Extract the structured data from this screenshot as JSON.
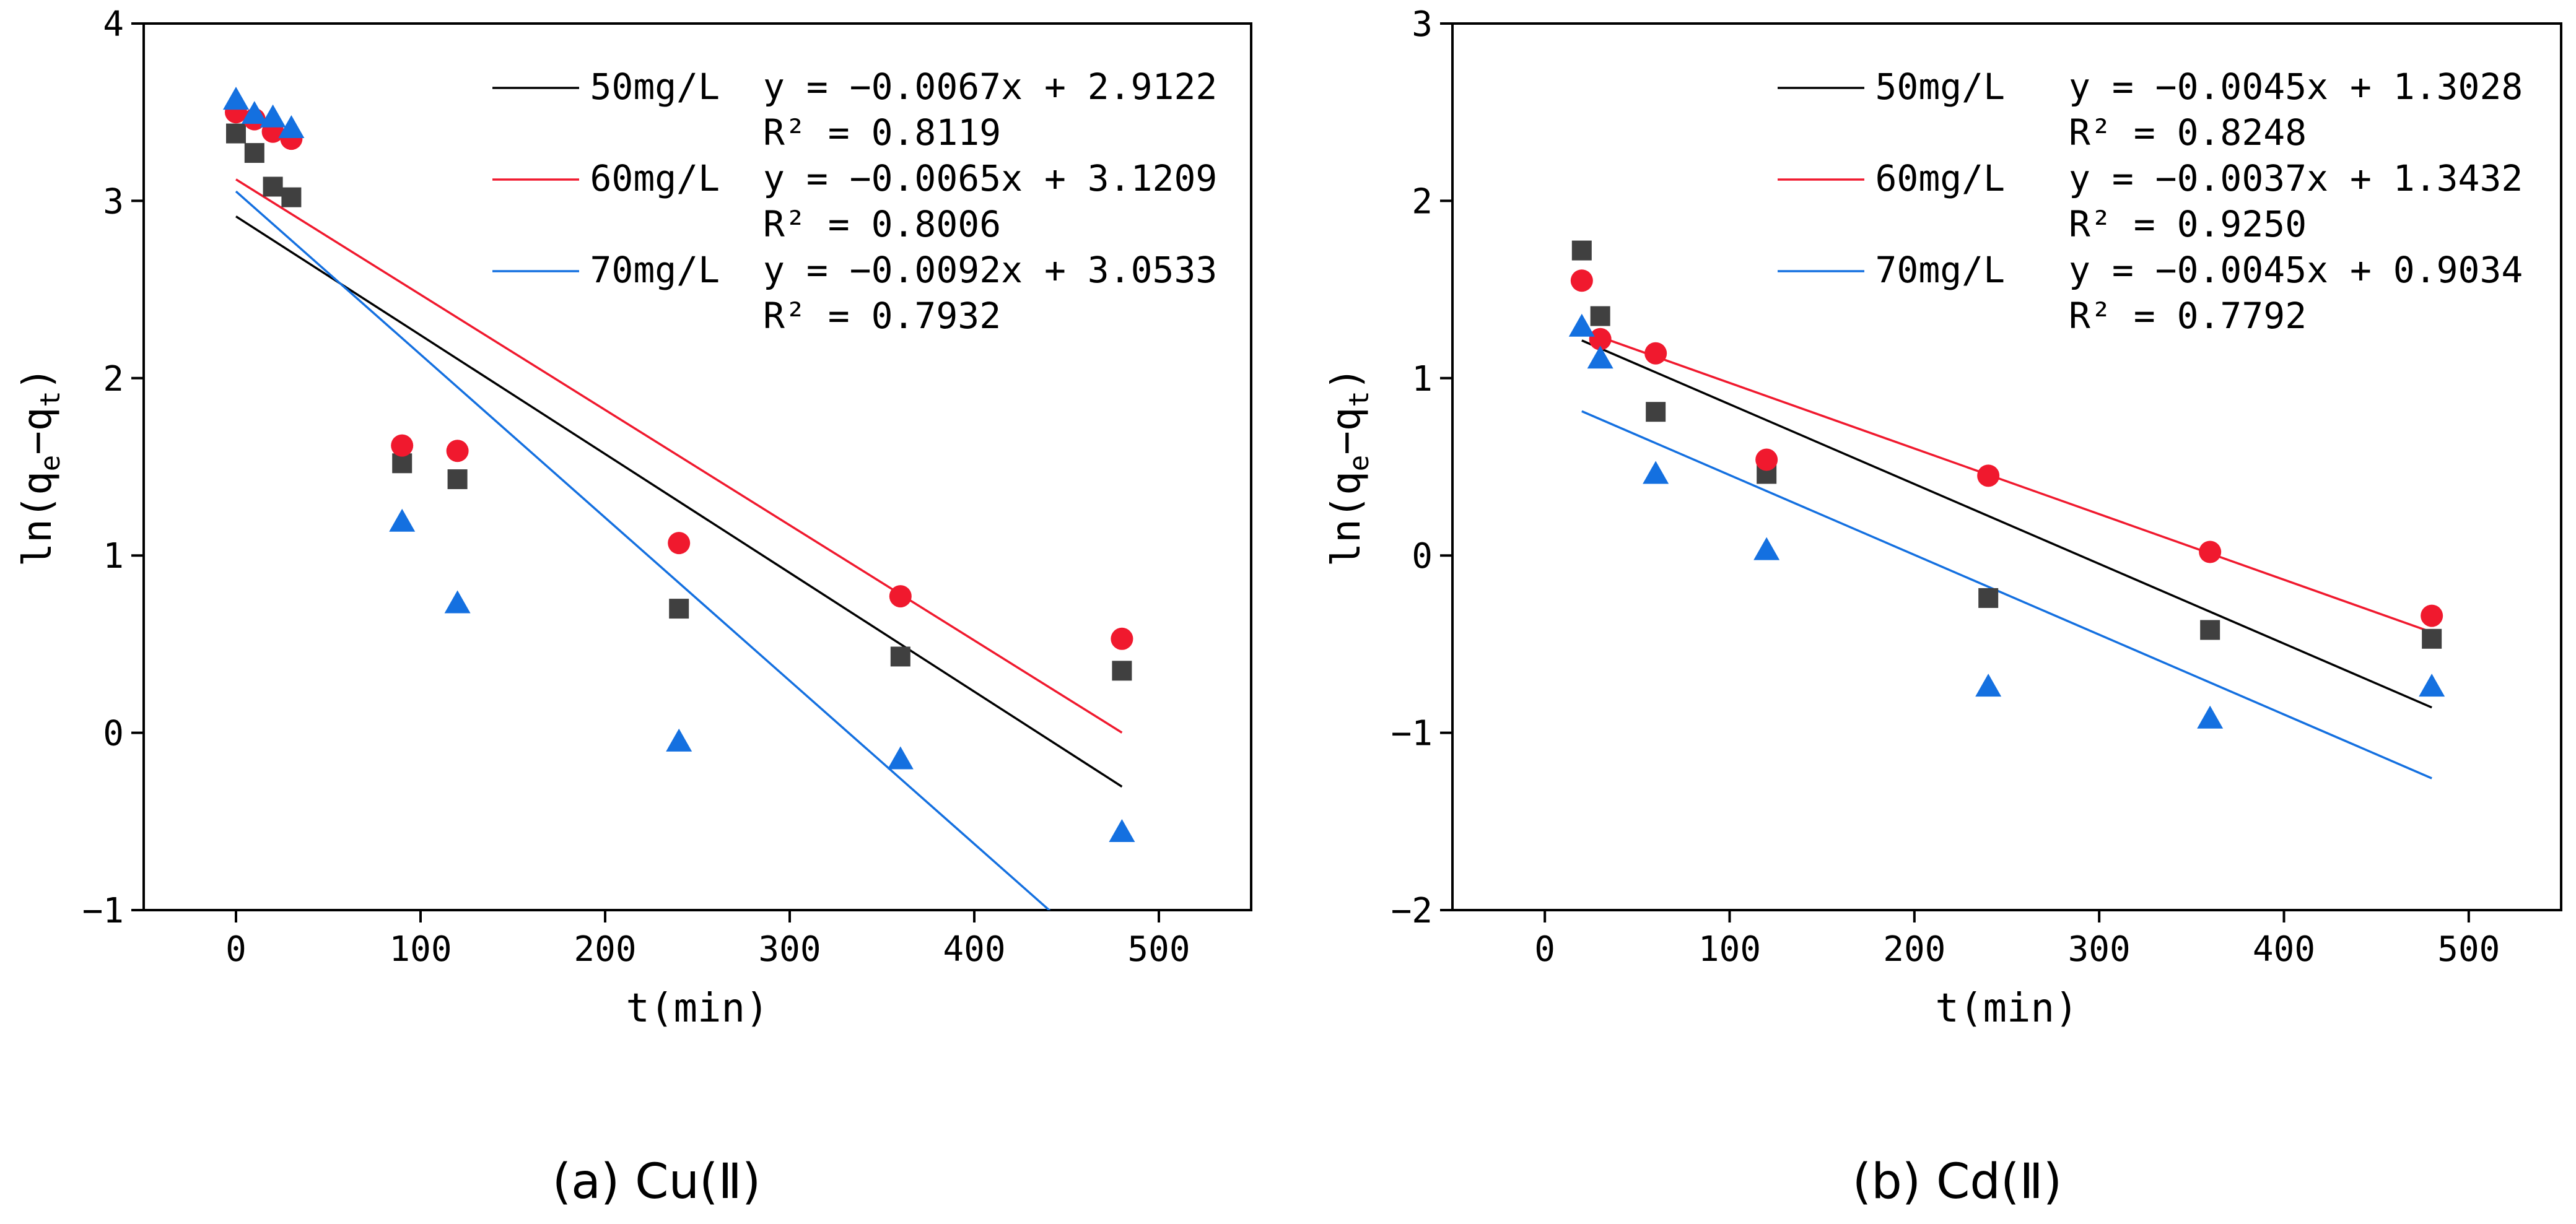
{
  "chart_data": [
    {
      "type": "scatter",
      "panel": "a",
      "caption": "(a) Cu(Ⅱ)",
      "xlabel": "t(min)",
      "ylabel": "ln(qe−qt)",
      "xlim": [
        -50,
        550
      ],
      "ylim": [
        -1,
        4
      ],
      "xticks": [
        0,
        100,
        200,
        300,
        400,
        500
      ],
      "yticks": [
        -1,
        0,
        1,
        2,
        3,
        4
      ],
      "legend_position": "top-right",
      "series": [
        {
          "name": "50mg/L",
          "color": "#404040",
          "marker": "square",
          "x": [
            0,
            10,
            20,
            30,
            90,
            120,
            240,
            360,
            480
          ],
          "y": [
            3.38,
            3.27,
            3.08,
            3.02,
            1.52,
            1.43,
            0.7,
            0.43,
            0.35
          ],
          "fit": {
            "slope": -0.0067,
            "intercept": 2.9122,
            "x_range": [
              0,
              480
            ]
          },
          "equation": "y = -0.0067x + 2.9122",
          "r2": "R² = 0.8119"
        },
        {
          "name": "60mg/L",
          "color": "#f0192e",
          "marker": "circle",
          "x": [
            0,
            10,
            20,
            30,
            90,
            120,
            240,
            360,
            480
          ],
          "y": [
            3.5,
            3.46,
            3.39,
            3.35,
            1.62,
            1.59,
            1.07,
            0.77,
            0.53
          ],
          "fit": {
            "slope": -0.0065,
            "intercept": 3.1209,
            "x_range": [
              0,
              480
            ]
          },
          "equation": "y = -0.0065x + 3.1209",
          "r2": "R² = 0.8006"
        },
        {
          "name": "70mg/L",
          "color": "#1470e0",
          "marker": "triangle",
          "x": [
            0,
            10,
            20,
            30,
            90,
            120,
            240,
            360,
            480
          ],
          "y": [
            3.57,
            3.49,
            3.47,
            3.41,
            1.19,
            0.73,
            -0.05,
            -0.15,
            -0.56
          ],
          "fit": {
            "slope": -0.0092,
            "intercept": 3.0533,
            "x_range": [
              0,
              480
            ]
          },
          "equation": "y = -0.0092x + 3.0533",
          "r2": "R² = 0.7932"
        }
      ]
    },
    {
      "type": "scatter",
      "panel": "b",
      "caption": "(b) Cd(Ⅱ)",
      "xlabel": "t(min)",
      "ylabel": "ln(qe−qt)",
      "xlim": [
        -50,
        550
      ],
      "ylim": [
        -2,
        3
      ],
      "xticks": [
        0,
        100,
        200,
        300,
        400,
        500
      ],
      "yticks": [
        -2,
        -1,
        0,
        1,
        2,
        3
      ],
      "legend_position": "top-right",
      "series": [
        {
          "name": "50mg/L",
          "color": "#404040",
          "marker": "square",
          "x": [
            20,
            30,
            60,
            120,
            240,
            360,
            480
          ],
          "y": [
            1.72,
            1.35,
            0.81,
            0.46,
            -0.24,
            -0.42,
            -0.47
          ],
          "fit": {
            "slope": -0.0045,
            "intercept": 1.3028,
            "x_range": [
              20,
              480
            ]
          },
          "equation": "y = -0.0045x + 1.3028",
          "r2": "R² = 0.8248"
        },
        {
          "name": "60mg/L",
          "color": "#f0192e",
          "marker": "circle",
          "x": [
            20,
            30,
            60,
            120,
            240,
            360,
            480
          ],
          "y": [
            1.55,
            1.22,
            1.14,
            0.54,
            0.45,
            0.02,
            -0.34
          ],
          "fit": {
            "slope": -0.0037,
            "intercept": 1.3432,
            "x_range": [
              20,
              480
            ]
          },
          "equation": "y = -0.0037x + 1.3432",
          "r2": "R² = 0.9250"
        },
        {
          "name": "70mg/L",
          "color": "#1470e0",
          "marker": "triangle",
          "x": [
            20,
            30,
            60,
            120,
            240,
            360,
            480
          ],
          "y": [
            1.29,
            1.11,
            0.46,
            0.03,
            -0.74,
            -0.92,
            -0.74
          ],
          "fit": {
            "slope": -0.0045,
            "intercept": 0.9034,
            "x_range": [
              20,
              480
            ]
          },
          "equation": "y = -0.0045x + 0.9034",
          "r2": "R² = 0.7792"
        }
      ]
    }
  ]
}
